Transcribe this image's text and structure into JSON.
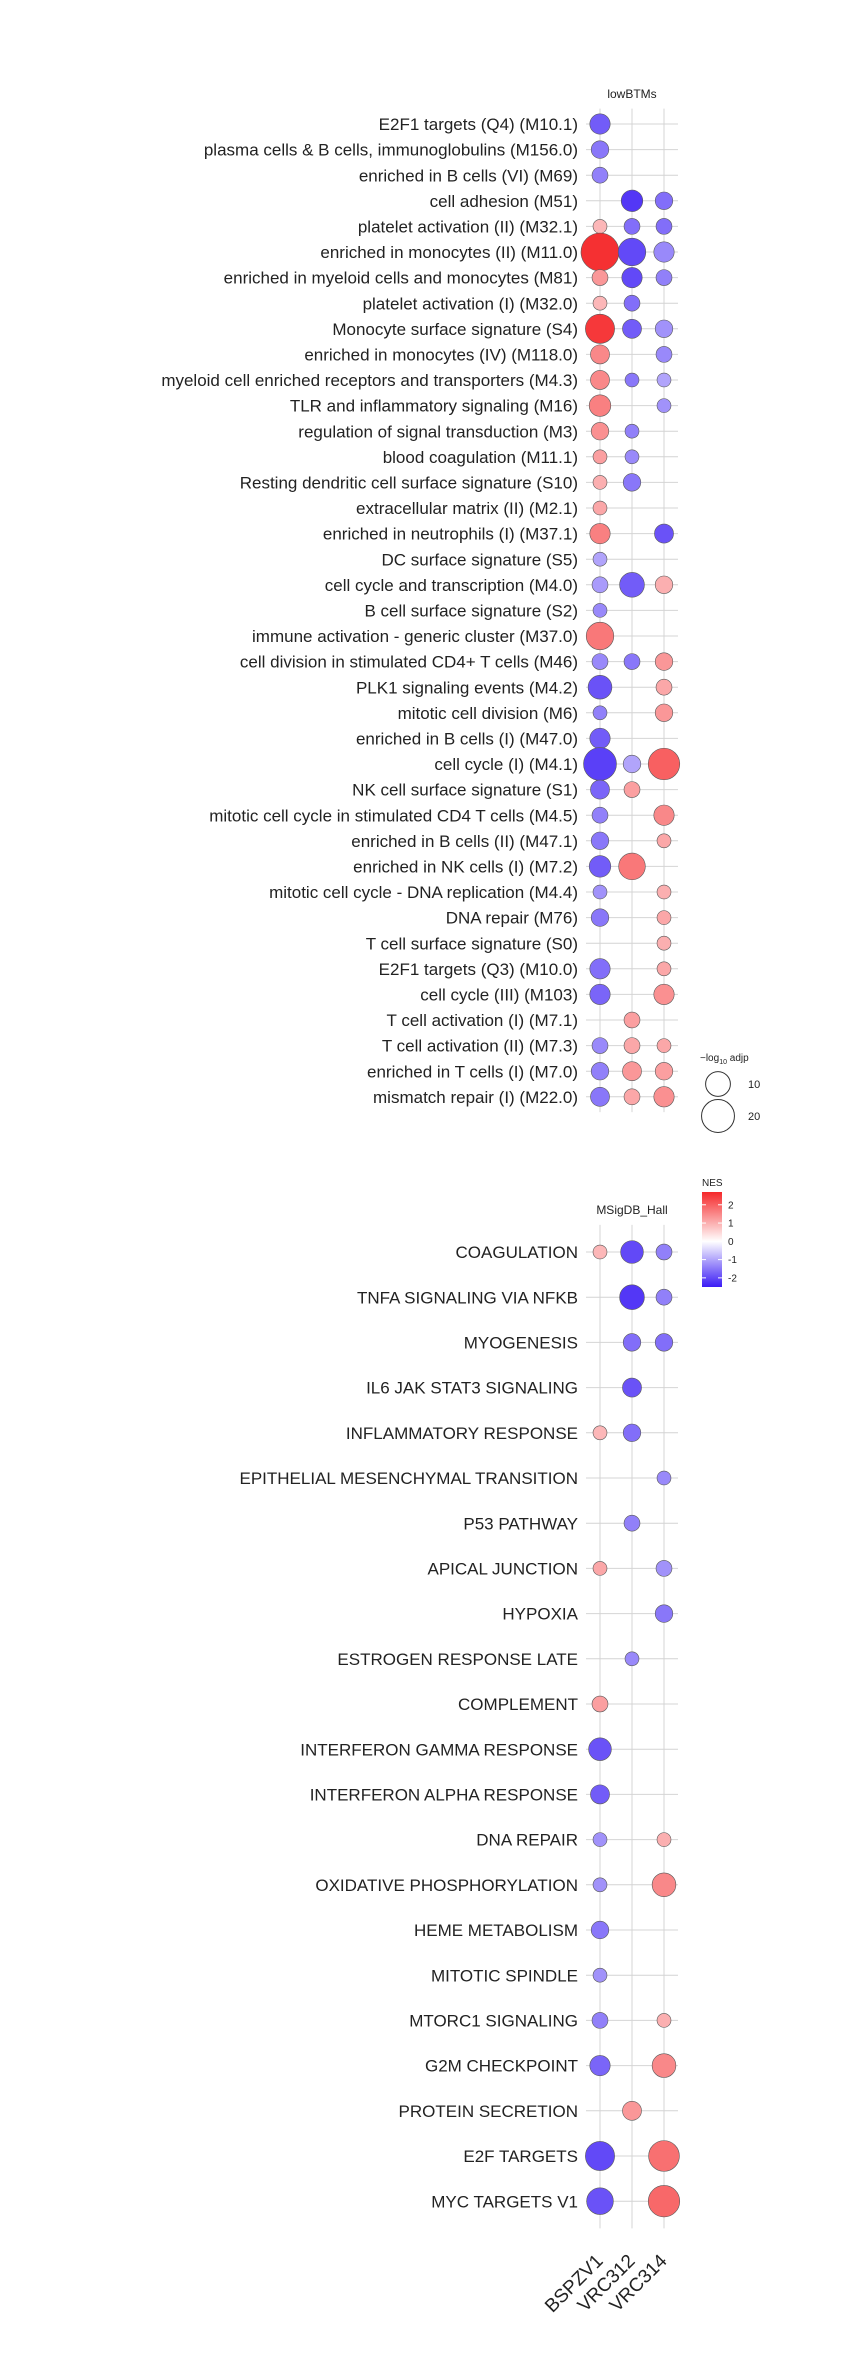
{
  "chart_data": [
    {
      "type": "scatter",
      "title": "lowBTMs",
      "columns": [
        "BSPZV1",
        "VRC312",
        "VRC314"
      ],
      "rows": [
        "E2F1 targets (Q4) (M10.1)",
        "plasma cells & B cells, immunoglobulins (M156.0)",
        "enriched in B cells (VI) (M69)",
        "cell adhesion (M51)",
        "platelet activation (II) (M32.1)",
        "enriched in monocytes (II) (M11.0)",
        "enriched in myeloid cells and monocytes (M81)",
        "platelet activation (I) (M32.0)",
        "Monocyte surface signature (S4)",
        "enriched in monocytes (IV) (M118.0)",
        "myeloid cell enriched receptors and transporters (M4.3)",
        "TLR and inflammatory signaling (M16)",
        "regulation of signal transduction (M3)",
        "blood coagulation (M11.1)",
        "Resting dendritic cell surface signature (S10)",
        "extracellular matrix (II) (M2.1)",
        "enriched in neutrophils (I) (M37.1)",
        "DC surface signature (S5)",
        "cell cycle and transcription (M4.0)",
        "B cell surface signature (S2)",
        "immune activation - generic cluster (M37.0)",
        "cell division in stimulated CD4+ T cells (M46)",
        "PLK1 signaling events (M4.2)",
        "mitotic cell division (M6)",
        "enriched in B cells (I) (M47.0)",
        "cell cycle (I) (M4.1)",
        "NK cell surface signature (S1)",
        "mitotic cell cycle in stimulated CD4 T cells (M4.5)",
        "enriched in B cells (II) (M47.1)",
        "enriched in NK cells (I) (M7.2)",
        "mitotic cell cycle - DNA replication (M4.4)",
        "DNA repair (M76)",
        "T cell surface signature (S0)",
        "E2F1 targets (Q3) (M10.0)",
        "cell cycle (III) (M103)",
        "T cell activation (I) (M7.1)",
        "T cell activation (II) (M7.3)",
        "enriched in T cells (I) (M7.0)",
        "mismatch repair (I) (M22.0)"
      ],
      "points": [
        {
          "row": 0,
          "col": 0,
          "nes": -1.8,
          "log10p": 6
        },
        {
          "row": 1,
          "col": 0,
          "nes": -1.5,
          "log10p": 4
        },
        {
          "row": 2,
          "col": 0,
          "nes": -1.4,
          "log10p": 3
        },
        {
          "row": 3,
          "col": 1,
          "nes": -2.2,
          "log10p": 7
        },
        {
          "row": 3,
          "col": 2,
          "nes": -1.6,
          "log10p": 4
        },
        {
          "row": 4,
          "col": 0,
          "nes": 0.9,
          "log10p": 2
        },
        {
          "row": 4,
          "col": 1,
          "nes": -1.6,
          "log10p": 3
        },
        {
          "row": 4,
          "col": 2,
          "nes": -1.6,
          "log10p": 3
        },
        {
          "row": 5,
          "col": 0,
          "nes": 2.6,
          "log10p": 28
        },
        {
          "row": 5,
          "col": 1,
          "nes": -2.0,
          "log10p": 13
        },
        {
          "row": 5,
          "col": 2,
          "nes": -1.3,
          "log10p": 6
        },
        {
          "row": 6,
          "col": 0,
          "nes": 1.3,
          "log10p": 3
        },
        {
          "row": 6,
          "col": 1,
          "nes": -2.0,
          "log10p": 6
        },
        {
          "row": 6,
          "col": 2,
          "nes": -1.4,
          "log10p": 3
        },
        {
          "row": 7,
          "col": 0,
          "nes": 0.9,
          "log10p": 2
        },
        {
          "row": 7,
          "col": 1,
          "nes": -1.6,
          "log10p": 3
        },
        {
          "row": 8,
          "col": 0,
          "nes": 2.5,
          "log10p": 15
        },
        {
          "row": 8,
          "col": 1,
          "nes": -1.8,
          "log10p": 5
        },
        {
          "row": 8,
          "col": 2,
          "nes": -1.2,
          "log10p": 4
        },
        {
          "row": 9,
          "col": 0,
          "nes": 1.5,
          "log10p": 5
        },
        {
          "row": 9,
          "col": 2,
          "nes": -1.3,
          "log10p": 3
        },
        {
          "row": 10,
          "col": 0,
          "nes": 1.5,
          "log10p": 5
        },
        {
          "row": 10,
          "col": 1,
          "nes": -1.5,
          "log10p": 2
        },
        {
          "row": 10,
          "col": 2,
          "nes": -1.0,
          "log10p": 2
        },
        {
          "row": 11,
          "col": 0,
          "nes": 1.6,
          "log10p": 7
        },
        {
          "row": 11,
          "col": 2,
          "nes": -1.2,
          "log10p": 2
        },
        {
          "row": 12,
          "col": 0,
          "nes": 1.4,
          "log10p": 4
        },
        {
          "row": 12,
          "col": 1,
          "nes": -1.4,
          "log10p": 2
        },
        {
          "row": 13,
          "col": 0,
          "nes": 1.2,
          "log10p": 2
        },
        {
          "row": 13,
          "col": 1,
          "nes": -1.3,
          "log10p": 2
        },
        {
          "row": 14,
          "col": 0,
          "nes": 1.0,
          "log10p": 2
        },
        {
          "row": 14,
          "col": 1,
          "nes": -1.5,
          "log10p": 4
        },
        {
          "row": 15,
          "col": 0,
          "nes": 1.1,
          "log10p": 2
        },
        {
          "row": 16,
          "col": 0,
          "nes": 1.6,
          "log10p": 6
        },
        {
          "row": 16,
          "col": 2,
          "nes": -1.9,
          "log10p": 5
        },
        {
          "row": 17,
          "col": 0,
          "nes": -1.0,
          "log10p": 2
        },
        {
          "row": 18,
          "col": 0,
          "nes": -1.1,
          "log10p": 3
        },
        {
          "row": 18,
          "col": 1,
          "nes": -1.8,
          "log10p": 10
        },
        {
          "row": 18,
          "col": 2,
          "nes": 1.0,
          "log10p": 4
        },
        {
          "row": 19,
          "col": 0,
          "nes": -1.3,
          "log10p": 2
        },
        {
          "row": 20,
          "col": 0,
          "nes": 1.7,
          "log10p": 13
        },
        {
          "row": 21,
          "col": 0,
          "nes": -1.3,
          "log10p": 3
        },
        {
          "row": 21,
          "col": 1,
          "nes": -1.5,
          "log10p": 3
        },
        {
          "row": 21,
          "col": 2,
          "nes": 1.3,
          "log10p": 4
        },
        {
          "row": 22,
          "col": 0,
          "nes": -1.9,
          "log10p": 9
        },
        {
          "row": 22,
          "col": 2,
          "nes": 1.1,
          "log10p": 3
        },
        {
          "row": 23,
          "col": 0,
          "nes": -1.4,
          "log10p": 2
        },
        {
          "row": 23,
          "col": 2,
          "nes": 1.3,
          "log10p": 4
        },
        {
          "row": 24,
          "col": 0,
          "nes": -1.8,
          "log10p": 6
        },
        {
          "row": 25,
          "col": 0,
          "nes": -2.1,
          "log10p": 20
        },
        {
          "row": 25,
          "col": 1,
          "nes": -1.0,
          "log10p": 4
        },
        {
          "row": 25,
          "col": 2,
          "nes": 2.0,
          "log10p": 18
        },
        {
          "row": 26,
          "col": 0,
          "nes": -1.7,
          "log10p": 5
        },
        {
          "row": 26,
          "col": 1,
          "nes": 1.2,
          "log10p": 3
        },
        {
          "row": 27,
          "col": 0,
          "nes": -1.4,
          "log10p": 3
        },
        {
          "row": 27,
          "col": 2,
          "nes": 1.5,
          "log10p": 6
        },
        {
          "row": 28,
          "col": 0,
          "nes": -1.5,
          "log10p": 4
        },
        {
          "row": 28,
          "col": 2,
          "nes": 1.1,
          "log10p": 2
        },
        {
          "row": 29,
          "col": 0,
          "nes": -1.8,
          "log10p": 7
        },
        {
          "row": 29,
          "col": 1,
          "nes": 1.7,
          "log10p": 12
        },
        {
          "row": 30,
          "col": 0,
          "nes": -1.2,
          "log10p": 2
        },
        {
          "row": 30,
          "col": 2,
          "nes": 1.0,
          "log10p": 2
        },
        {
          "row": 31,
          "col": 0,
          "nes": -1.5,
          "log10p": 4
        },
        {
          "row": 31,
          "col": 2,
          "nes": 1.1,
          "log10p": 2
        },
        {
          "row": 32,
          "col": 2,
          "nes": 1.0,
          "log10p": 2
        },
        {
          "row": 33,
          "col": 0,
          "nes": -1.6,
          "log10p": 6
        },
        {
          "row": 33,
          "col": 2,
          "nes": 1.1,
          "log10p": 2
        },
        {
          "row": 34,
          "col": 0,
          "nes": -1.7,
          "log10p": 6
        },
        {
          "row": 34,
          "col": 2,
          "nes": 1.4,
          "log10p": 6
        },
        {
          "row": 35,
          "col": 1,
          "nes": 1.2,
          "log10p": 3
        },
        {
          "row": 36,
          "col": 0,
          "nes": -1.3,
          "log10p": 3
        },
        {
          "row": 36,
          "col": 1,
          "nes": 1.1,
          "log10p": 3
        },
        {
          "row": 36,
          "col": 2,
          "nes": 1.1,
          "log10p": 2
        },
        {
          "row": 37,
          "col": 0,
          "nes": -1.4,
          "log10p": 4
        },
        {
          "row": 37,
          "col": 1,
          "nes": 1.3,
          "log10p": 5
        },
        {
          "row": 37,
          "col": 2,
          "nes": 1.2,
          "log10p": 4
        },
        {
          "row": 38,
          "col": 0,
          "nes": -1.5,
          "log10p": 5
        },
        {
          "row": 38,
          "col": 1,
          "nes": 1.1,
          "log10p": 3
        },
        {
          "row": 38,
          "col": 2,
          "nes": 1.4,
          "log10p": 6
        }
      ]
    },
    {
      "type": "scatter",
      "title": "MSigDB_Hall",
      "columns": [
        "BSPZV1",
        "VRC312",
        "VRC314"
      ],
      "rows": [
        "COAGULATION",
        "TNFA SIGNALING VIA NFKB",
        "MYOGENESIS",
        "IL6 JAK STAT3 SIGNALING",
        "INFLAMMATORY RESPONSE",
        "EPITHELIAL MESENCHYMAL TRANSITION",
        "P53 PATHWAY",
        "APICAL JUNCTION",
        "HYPOXIA",
        "ESTROGEN RESPONSE LATE",
        "COMPLEMENT",
        "INTERFERON GAMMA RESPONSE",
        "INTERFERON ALPHA RESPONSE",
        "DNA REPAIR",
        "OXIDATIVE PHOSPHORYLATION",
        "HEME METABOLISM",
        "MITOTIC SPINDLE",
        "MTORC1 SIGNALING",
        "G2M CHECKPOINT",
        "PROTEIN SECRETION",
        "E2F TARGETS",
        "MYC TARGETS V1"
      ],
      "points": [
        {
          "row": 0,
          "col": 0,
          "nes": 0.9,
          "log10p": 2
        },
        {
          "row": 0,
          "col": 1,
          "nes": -2.0,
          "log10p": 8
        },
        {
          "row": 0,
          "col": 2,
          "nes": -1.4,
          "log10p": 3
        },
        {
          "row": 1,
          "col": 1,
          "nes": -2.2,
          "log10p": 10
        },
        {
          "row": 1,
          "col": 2,
          "nes": -1.4,
          "log10p": 3
        },
        {
          "row": 2,
          "col": 1,
          "nes": -1.6,
          "log10p": 4
        },
        {
          "row": 2,
          "col": 2,
          "nes": -1.6,
          "log10p": 4
        },
        {
          "row": 3,
          "col": 1,
          "nes": -1.9,
          "log10p": 5
        },
        {
          "row": 4,
          "col": 0,
          "nes": 0.9,
          "log10p": 2
        },
        {
          "row": 4,
          "col": 1,
          "nes": -1.6,
          "log10p": 4
        },
        {
          "row": 5,
          "col": 2,
          "nes": -1.3,
          "log10p": 2
        },
        {
          "row": 6,
          "col": 1,
          "nes": -1.4,
          "log10p": 3
        },
        {
          "row": 7,
          "col": 0,
          "nes": 1.1,
          "log10p": 2
        },
        {
          "row": 7,
          "col": 2,
          "nes": -1.2,
          "log10p": 3
        },
        {
          "row": 8,
          "col": 2,
          "nes": -1.5,
          "log10p": 4
        },
        {
          "row": 9,
          "col": 1,
          "nes": -1.3,
          "log10p": 2
        },
        {
          "row": 10,
          "col": 0,
          "nes": 1.2,
          "log10p": 3
        },
        {
          "row": 11,
          "col": 0,
          "nes": -1.9,
          "log10p": 8
        },
        {
          "row": 12,
          "col": 0,
          "nes": -1.8,
          "log10p": 5
        },
        {
          "row": 13,
          "col": 0,
          "nes": -1.2,
          "log10p": 2
        },
        {
          "row": 13,
          "col": 2,
          "nes": 1.0,
          "log10p": 2
        },
        {
          "row": 14,
          "col": 0,
          "nes": -1.2,
          "log10p": 2
        },
        {
          "row": 14,
          "col": 2,
          "nes": 1.5,
          "log10p": 9
        },
        {
          "row": 15,
          "col": 0,
          "nes": -1.5,
          "log10p": 4
        },
        {
          "row": 16,
          "col": 0,
          "nes": -1.2,
          "log10p": 2
        },
        {
          "row": 17,
          "col": 0,
          "nes": -1.4,
          "log10p": 3
        },
        {
          "row": 17,
          "col": 2,
          "nes": 1.0,
          "log10p": 2
        },
        {
          "row": 18,
          "col": 0,
          "nes": -1.7,
          "log10p": 6
        },
        {
          "row": 18,
          "col": 2,
          "nes": 1.5,
          "log10p": 9
        },
        {
          "row": 19,
          "col": 1,
          "nes": 1.3,
          "log10p": 5
        },
        {
          "row": 20,
          "col": 0,
          "nes": -2.0,
          "log10p": 15
        },
        {
          "row": 20,
          "col": 2,
          "nes": 1.8,
          "log10p": 17
        },
        {
          "row": 21,
          "col": 0,
          "nes": -1.9,
          "log10p": 12
        },
        {
          "row": 21,
          "col": 2,
          "nes": 1.9,
          "log10p": 18
        }
      ]
    }
  ],
  "size_legend": {
    "title_prefix": "−log",
    "title_sub": "10",
    "title_suffix": " adjp",
    "breaks": [
      10,
      20
    ],
    "labels": [
      "10",
      "20"
    ]
  },
  "color_legend": {
    "title": "NES",
    "breaks": [
      2,
      1,
      0,
      -1,
      -2
    ],
    "labels": [
      "2",
      "1",
      "0",
      "-1",
      "-2"
    ],
    "low_color": "#3B1CF5",
    "mid_color": "#FFFFFF",
    "high_color": "#F5282A",
    "limits": [
      -2.5,
      2.7
    ]
  }
}
